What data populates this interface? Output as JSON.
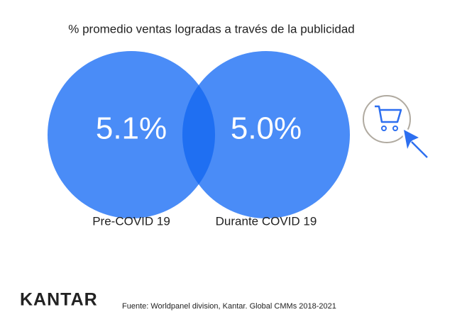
{
  "chart_data": {
    "type": "venn",
    "title": "% promedio ventas logradas a través de la publicidad",
    "categories": [
      "Pre-COVID 19",
      "Durante COVID 19"
    ],
    "values": [
      5.1,
      5.0
    ],
    "value_labels": [
      "5.1%",
      "5.0%"
    ],
    "color": "#4a8cf7",
    "overlap_color": "#1f6ff2",
    "source": "Fuente: Worldpanel division, Kantar. Global CMMs 2018-2021",
    "brand": "KANTAR"
  }
}
